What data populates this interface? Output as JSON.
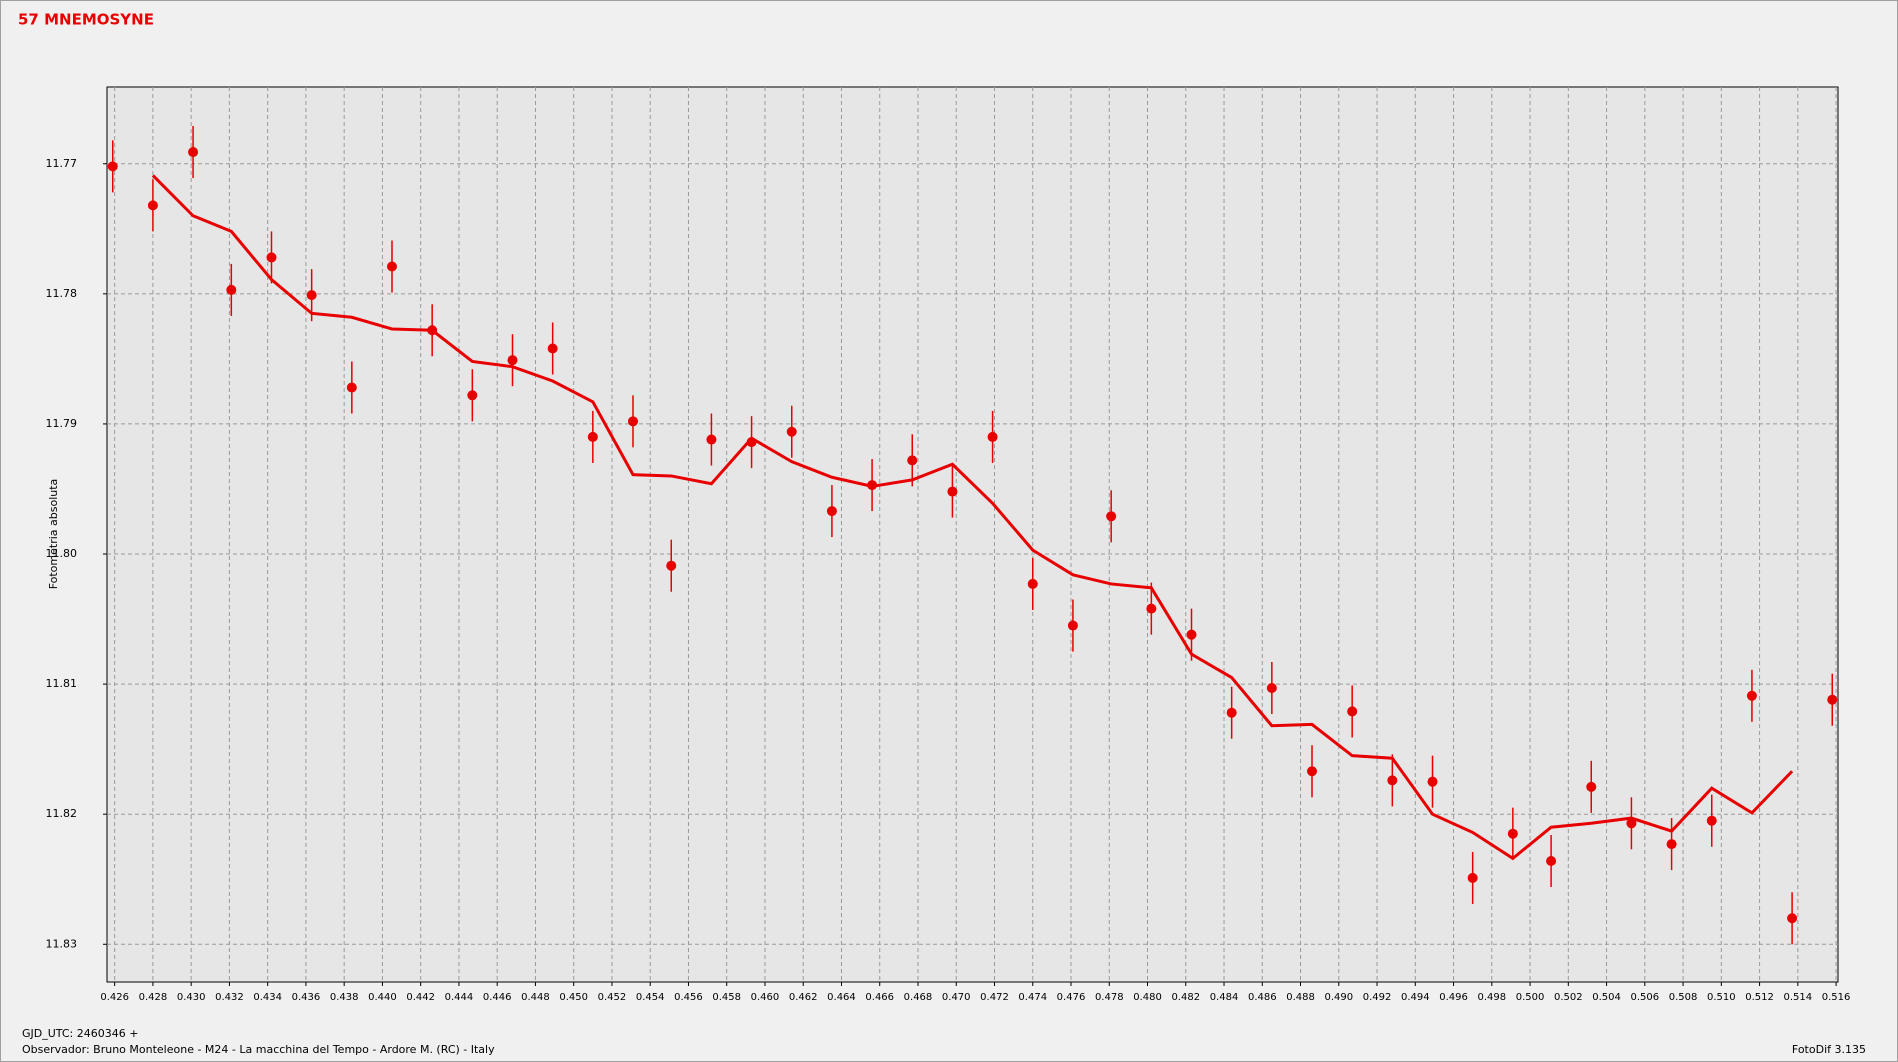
{
  "chart_data": {
    "type": "scatter",
    "title": "57 MNEMOSYNE",
    "y_label": "Fotometria absoluta",
    "x_label": "GJD_UTC: 2460346 +",
    "observer": "Observador: Bruno Monteleone - M24 - La macchina del Tempo - Ardore M. (RC) - Italy",
    "software": "FotoDif 3.135",
    "x": [
      0.4259,
      0.428,
      0.4301,
      0.4321,
      0.4342,
      0.4363,
      0.4384,
      0.4405,
      0.4426,
      0.4447,
      0.4468,
      0.4489,
      0.451,
      0.4531,
      0.4551,
      0.4572,
      0.4593,
      0.4614,
      0.4635,
      0.4656,
      0.4677,
      0.4698,
      0.4719,
      0.474,
      0.4761,
      0.4781,
      0.4802,
      0.4823,
      0.4844,
      0.4865,
      0.4886,
      0.4907,
      0.4928,
      0.4949,
      0.497,
      0.4991,
      0.5011,
      0.5032,
      0.5053,
      0.5074,
      0.5095,
      0.5116,
      0.5137,
      0.5158
    ],
    "series": [
      {
        "type": "scatter",
        "color": "#e80000",
        "values": [
          11.7702,
          11.7732,
          11.7691,
          11.7797,
          11.7772,
          11.7801,
          11.7872,
          11.7779,
          11.7828,
          11.7878,
          11.7851,
          11.7842,
          11.791,
          11.7898,
          11.8009,
          11.7912,
          11.7914,
          11.7906,
          11.7967,
          11.7947,
          11.7928,
          11.7952,
          11.791,
          11.8023,
          11.8055,
          11.7971,
          11.8042,
          11.8062,
          11.8122,
          11.8103,
          11.8167,
          11.8121,
          11.8174,
          11.8175,
          11.8249,
          11.8215,
          11.8236,
          11.8179,
          11.8207,
          11.8223,
          11.8205,
          11.8109,
          11.828,
          11.8112
        ],
        "errors": [
          0.002,
          0.002,
          0.002,
          0.002,
          0.002,
          0.002,
          0.002,
          0.002,
          0.002,
          0.002,
          0.002,
          0.002,
          0.002,
          0.002,
          0.002,
          0.002,
          0.002,
          0.002,
          0.002,
          0.002,
          0.002,
          0.002,
          0.002,
          0.002,
          0.002,
          0.002,
          0.002,
          0.002,
          0.002,
          0.002,
          0.002,
          0.002,
          0.002,
          0.002,
          0.002,
          0.002,
          0.002,
          0.002,
          0.002,
          0.002,
          0.002,
          0.002,
          0.002,
          0.002
        ]
      },
      {
        "type": "line",
        "color": "#e80000",
        "values": [
          null,
          11.7709,
          11.774,
          11.7752,
          11.7789,
          11.7815,
          11.7818,
          11.7827,
          11.7828,
          11.7852,
          11.7856,
          11.7867,
          11.7883,
          11.7939,
          11.794,
          11.7946,
          11.7911,
          11.7929,
          11.7941,
          11.7948,
          11.7943,
          11.7931,
          11.7961,
          11.7997,
          11.8016,
          11.8023,
          11.8026,
          11.8077,
          11.8095,
          11.8132,
          11.8131,
          11.8155,
          11.8157,
          11.82,
          11.8214,
          11.8234,
          11.821,
          11.8207,
          11.8203,
          11.8213,
          11.818,
          11.8199,
          11.8167,
          null
        ]
      }
    ],
    "xlim": [
      0.4256,
      0.5161
    ],
    "ylim": [
      11.8329,
      11.7641
    ],
    "xticks": [
      0.426,
      0.428,
      {
        "value": 0.43,
        "label": "0.430"
      },
      0.432,
      0.434,
      0.436,
      0.438,
      {
        "value": 0.44,
        "label": "0.440"
      },
      0.442,
      0.444,
      0.446,
      0.448,
      {
        "value": 0.45,
        "label": "0.450"
      },
      0.452,
      0.454,
      0.456,
      0.458,
      {
        "value": 0.46,
        "label": "0.460"
      },
      0.462,
      0.464,
      0.466,
      0.468,
      {
        "value": 0.47,
        "label": "0.470"
      },
      0.472,
      0.474,
      0.476,
      0.478,
      {
        "value": 0.48,
        "label": "0.480"
      },
      0.482,
      0.484,
      0.486,
      0.488,
      {
        "value": 0.49,
        "label": "0.490"
      },
      0.492,
      0.494,
      0.496,
      0.498,
      {
        "value": 0.5,
        "label": "0.500"
      },
      0.502,
      0.504,
      0.506,
      0.508,
      {
        "value": 0.51,
        "label": "0.510"
      },
      0.512,
      0.514,
      0.516
    ],
    "yticks": [
      11.77,
      11.78,
      11.79,
      {
        "value": 11.8,
        "label": "11.80"
      },
      11.81,
      11.82,
      11.83
    ],
    "grid": true
  }
}
